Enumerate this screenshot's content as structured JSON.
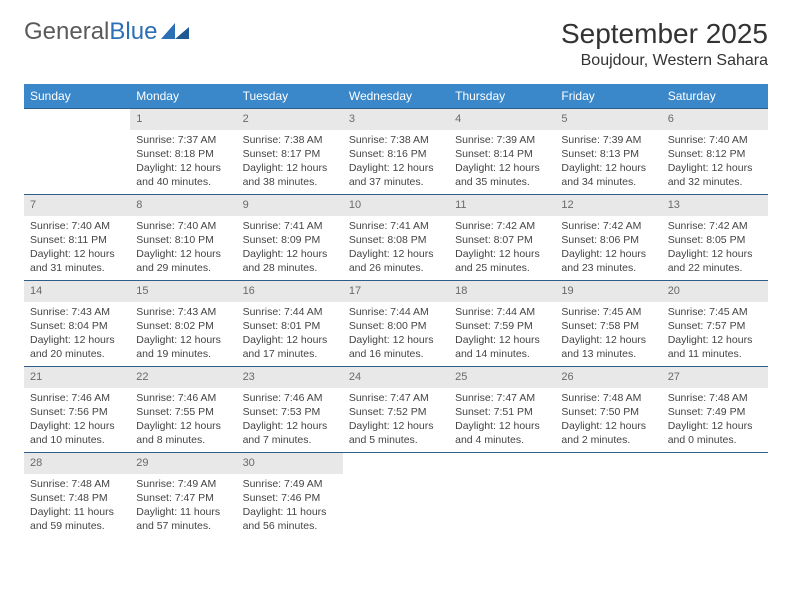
{
  "brand": {
    "word1": "General",
    "word2": "Blue"
  },
  "title": "September 2025",
  "location": "Boujdour, Western Sahara",
  "colors": {
    "header_bg": "#3a87c9",
    "header_text": "#ffffff",
    "row_border": "#2f5d8a",
    "daynum_bg": "#e8e8e8",
    "daynum_text": "#6a6a6a",
    "body_text": "#444444",
    "brand_gray": "#5a5a5a",
    "brand_blue": "#2c6fb5"
  },
  "weekdays": [
    "Sunday",
    "Monday",
    "Tuesday",
    "Wednesday",
    "Thursday",
    "Friday",
    "Saturday"
  ],
  "weeks": [
    [
      null,
      {
        "n": "1",
        "sr": "Sunrise: 7:37 AM",
        "ss": "Sunset: 8:18 PM",
        "d1": "Daylight: 12 hours",
        "d2": "and 40 minutes."
      },
      {
        "n": "2",
        "sr": "Sunrise: 7:38 AM",
        "ss": "Sunset: 8:17 PM",
        "d1": "Daylight: 12 hours",
        "d2": "and 38 minutes."
      },
      {
        "n": "3",
        "sr": "Sunrise: 7:38 AM",
        "ss": "Sunset: 8:16 PM",
        "d1": "Daylight: 12 hours",
        "d2": "and 37 minutes."
      },
      {
        "n": "4",
        "sr": "Sunrise: 7:39 AM",
        "ss": "Sunset: 8:14 PM",
        "d1": "Daylight: 12 hours",
        "d2": "and 35 minutes."
      },
      {
        "n": "5",
        "sr": "Sunrise: 7:39 AM",
        "ss": "Sunset: 8:13 PM",
        "d1": "Daylight: 12 hours",
        "d2": "and 34 minutes."
      },
      {
        "n": "6",
        "sr": "Sunrise: 7:40 AM",
        "ss": "Sunset: 8:12 PM",
        "d1": "Daylight: 12 hours",
        "d2": "and 32 minutes."
      }
    ],
    [
      {
        "n": "7",
        "sr": "Sunrise: 7:40 AM",
        "ss": "Sunset: 8:11 PM",
        "d1": "Daylight: 12 hours",
        "d2": "and 31 minutes."
      },
      {
        "n": "8",
        "sr": "Sunrise: 7:40 AM",
        "ss": "Sunset: 8:10 PM",
        "d1": "Daylight: 12 hours",
        "d2": "and 29 minutes."
      },
      {
        "n": "9",
        "sr": "Sunrise: 7:41 AM",
        "ss": "Sunset: 8:09 PM",
        "d1": "Daylight: 12 hours",
        "d2": "and 28 minutes."
      },
      {
        "n": "10",
        "sr": "Sunrise: 7:41 AM",
        "ss": "Sunset: 8:08 PM",
        "d1": "Daylight: 12 hours",
        "d2": "and 26 minutes."
      },
      {
        "n": "11",
        "sr": "Sunrise: 7:42 AM",
        "ss": "Sunset: 8:07 PM",
        "d1": "Daylight: 12 hours",
        "d2": "and 25 minutes."
      },
      {
        "n": "12",
        "sr": "Sunrise: 7:42 AM",
        "ss": "Sunset: 8:06 PM",
        "d1": "Daylight: 12 hours",
        "d2": "and 23 minutes."
      },
      {
        "n": "13",
        "sr": "Sunrise: 7:42 AM",
        "ss": "Sunset: 8:05 PM",
        "d1": "Daylight: 12 hours",
        "d2": "and 22 minutes."
      }
    ],
    [
      {
        "n": "14",
        "sr": "Sunrise: 7:43 AM",
        "ss": "Sunset: 8:04 PM",
        "d1": "Daylight: 12 hours",
        "d2": "and 20 minutes."
      },
      {
        "n": "15",
        "sr": "Sunrise: 7:43 AM",
        "ss": "Sunset: 8:02 PM",
        "d1": "Daylight: 12 hours",
        "d2": "and 19 minutes."
      },
      {
        "n": "16",
        "sr": "Sunrise: 7:44 AM",
        "ss": "Sunset: 8:01 PM",
        "d1": "Daylight: 12 hours",
        "d2": "and 17 minutes."
      },
      {
        "n": "17",
        "sr": "Sunrise: 7:44 AM",
        "ss": "Sunset: 8:00 PM",
        "d1": "Daylight: 12 hours",
        "d2": "and 16 minutes."
      },
      {
        "n": "18",
        "sr": "Sunrise: 7:44 AM",
        "ss": "Sunset: 7:59 PM",
        "d1": "Daylight: 12 hours",
        "d2": "and 14 minutes."
      },
      {
        "n": "19",
        "sr": "Sunrise: 7:45 AM",
        "ss": "Sunset: 7:58 PM",
        "d1": "Daylight: 12 hours",
        "d2": "and 13 minutes."
      },
      {
        "n": "20",
        "sr": "Sunrise: 7:45 AM",
        "ss": "Sunset: 7:57 PM",
        "d1": "Daylight: 12 hours",
        "d2": "and 11 minutes."
      }
    ],
    [
      {
        "n": "21",
        "sr": "Sunrise: 7:46 AM",
        "ss": "Sunset: 7:56 PM",
        "d1": "Daylight: 12 hours",
        "d2": "and 10 minutes."
      },
      {
        "n": "22",
        "sr": "Sunrise: 7:46 AM",
        "ss": "Sunset: 7:55 PM",
        "d1": "Daylight: 12 hours",
        "d2": "and 8 minutes."
      },
      {
        "n": "23",
        "sr": "Sunrise: 7:46 AM",
        "ss": "Sunset: 7:53 PM",
        "d1": "Daylight: 12 hours",
        "d2": "and 7 minutes."
      },
      {
        "n": "24",
        "sr": "Sunrise: 7:47 AM",
        "ss": "Sunset: 7:52 PM",
        "d1": "Daylight: 12 hours",
        "d2": "and 5 minutes."
      },
      {
        "n": "25",
        "sr": "Sunrise: 7:47 AM",
        "ss": "Sunset: 7:51 PM",
        "d1": "Daylight: 12 hours",
        "d2": "and 4 minutes."
      },
      {
        "n": "26",
        "sr": "Sunrise: 7:48 AM",
        "ss": "Sunset: 7:50 PM",
        "d1": "Daylight: 12 hours",
        "d2": "and 2 minutes."
      },
      {
        "n": "27",
        "sr": "Sunrise: 7:48 AM",
        "ss": "Sunset: 7:49 PM",
        "d1": "Daylight: 12 hours",
        "d2": "and 0 minutes."
      }
    ],
    [
      {
        "n": "28",
        "sr": "Sunrise: 7:48 AM",
        "ss": "Sunset: 7:48 PM",
        "d1": "Daylight: 11 hours",
        "d2": "and 59 minutes."
      },
      {
        "n": "29",
        "sr": "Sunrise: 7:49 AM",
        "ss": "Sunset: 7:47 PM",
        "d1": "Daylight: 11 hours",
        "d2": "and 57 minutes."
      },
      {
        "n": "30",
        "sr": "Sunrise: 7:49 AM",
        "ss": "Sunset: 7:46 PM",
        "d1": "Daylight: 11 hours",
        "d2": "and 56 minutes."
      },
      null,
      null,
      null,
      null
    ]
  ]
}
